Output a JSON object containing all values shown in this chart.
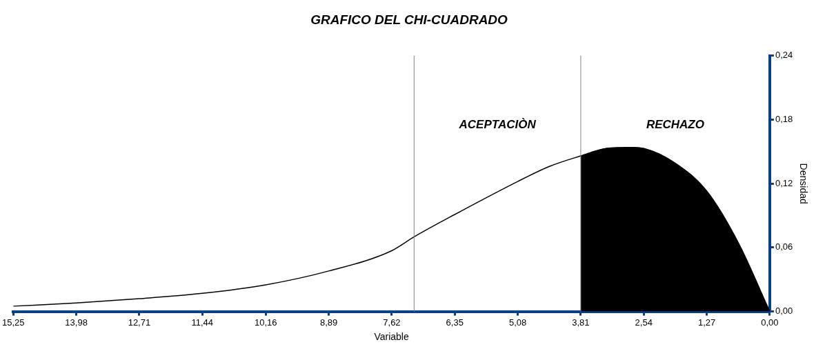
{
  "chart_data": {
    "type": "line",
    "title": "GRAFICO DEL CHI-CUADRADO",
    "xlabel": "Variable",
    "ylabel": "Densidad",
    "x": [
      15.25,
      13.98,
      12.71,
      11.44,
      10.16,
      8.89,
      7.62,
      7.17,
      6.35,
      5.08,
      4.45,
      3.81,
      3.3,
      2.8,
      2.54,
      1.9,
      1.27,
      0.64,
      0
    ],
    "series": [
      {
        "type": "line",
        "color": "#000000",
        "values": [
          0.005,
          0.008,
          0.012,
          0.017,
          0.025,
          0.038,
          0.057,
          0.07,
          0.091,
          0.122,
          0.136,
          0.146,
          0.153,
          0.154,
          0.153,
          0.139,
          0.113,
          0.065,
          0
        ]
      },
      {
        "type": "area",
        "color": "#000000",
        "x": [
          3.81,
          3.3,
          2.8,
          2.54,
          1.9,
          1.27,
          0.64,
          0
        ],
        "values": [
          0.146,
          0.153,
          0.154,
          0.153,
          0.139,
          0.113,
          0.065,
          0
        ]
      }
    ],
    "xlim": [
      15.25,
      0
    ],
    "xticks": [
      {
        "value": 15.25,
        "label": "15,25"
      },
      {
        "value": 13.98,
        "label": "13,98"
      },
      {
        "value": 12.71,
        "label": "12,71"
      },
      {
        "value": 11.44,
        "label": "11,44"
      },
      {
        "value": 10.16,
        "label": "10,16"
      },
      {
        "value": 8.89,
        "label": "8,89"
      },
      {
        "value": 7.62,
        "label": "7,62"
      },
      {
        "value": 6.35,
        "label": "6,35"
      },
      {
        "value": 5.08,
        "label": "5,08"
      },
      {
        "value": 3.81,
        "label": "3,81"
      },
      {
        "value": 2.54,
        "label": "2,54"
      },
      {
        "value": 1.27,
        "label": "1,27"
      },
      {
        "value": 0,
        "label": "0,00"
      }
    ],
    "ylim": [
      0,
      0.24
    ],
    "yticks": [
      {
        "value": 0,
        "label": "0,00"
      },
      {
        "value": 0.06,
        "label": "0,06"
      },
      {
        "value": 0.12,
        "label": "0,12"
      },
      {
        "value": 0.18,
        "label": "0,18"
      },
      {
        "value": 0.24,
        "label": "0,24"
      }
    ],
    "ref_lines": [
      {
        "axis": "x",
        "value": 7.17,
        "color": "#808080"
      },
      {
        "axis": "x",
        "value": 3.81,
        "color": "#808080"
      }
    ],
    "annotations": [
      "ACEPTACIÒN",
      "RECHAZO"
    ],
    "legend": false
  }
}
